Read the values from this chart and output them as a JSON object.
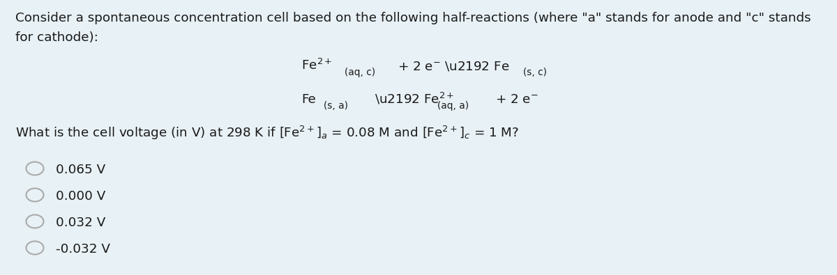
{
  "background_color": "#e8f1f5",
  "text_color": "#1a1a1a",
  "title_line1": "Consider a spontaneous concentration cell based on the following half-reactions (where \"a\" stands for anode and \"c\" stands",
  "title_line2": "for cathode):",
  "choices": [
    "0.065 V",
    "0.000 V",
    "0.032 V",
    "-0.032 V"
  ],
  "font_size_body": 13.2,
  "font_size_small": 9.9,
  "fig_width": 12.0,
  "fig_height": 3.95,
  "dpi": 100
}
